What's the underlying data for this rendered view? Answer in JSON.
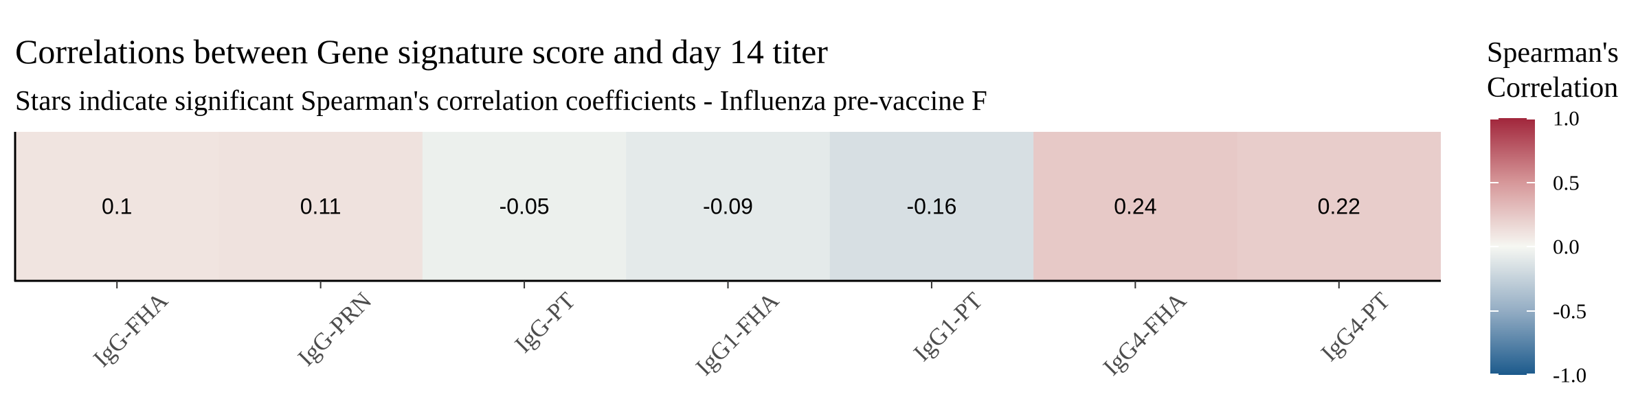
{
  "chart_data": {
    "type": "heatmap",
    "title": "Correlations between Gene signature score and day 14 titer",
    "subtitle": "Stars indicate significant Spearman's correlation coefficients - Influenza pre-vaccine F",
    "categories": [
      "IgG-FHA",
      "IgG-PRN",
      "IgG-PT",
      "IgG1-FHA",
      "IgG1-PT",
      "IgG4-FHA",
      "IgG4-PT"
    ],
    "values": [
      0.1,
      0.11,
      -0.05,
      -0.09,
      -0.16,
      0.24,
      0.22
    ],
    "grid": false,
    "legend": {
      "title_lines": [
        "Spearman's",
        "Correlation"
      ],
      "position": "right",
      "range": [
        -1,
        1
      ],
      "ticks": [
        1,
        0.5,
        0,
        -0.5,
        -1
      ],
      "tick_labels": [
        "1.0",
        "0.5",
        "0.0",
        "-0.5",
        "-1.0"
      ]
    },
    "colorscale": [
      {
        "value": -1,
        "color": "#1c5a8c"
      },
      {
        "value": -0.5,
        "color": "#94adc4"
      },
      {
        "value": 0,
        "color": "#f6f7f2"
      },
      {
        "value": 0.5,
        "color": "#d69799"
      },
      {
        "value": 1,
        "color": "#a1263b"
      }
    ]
  }
}
